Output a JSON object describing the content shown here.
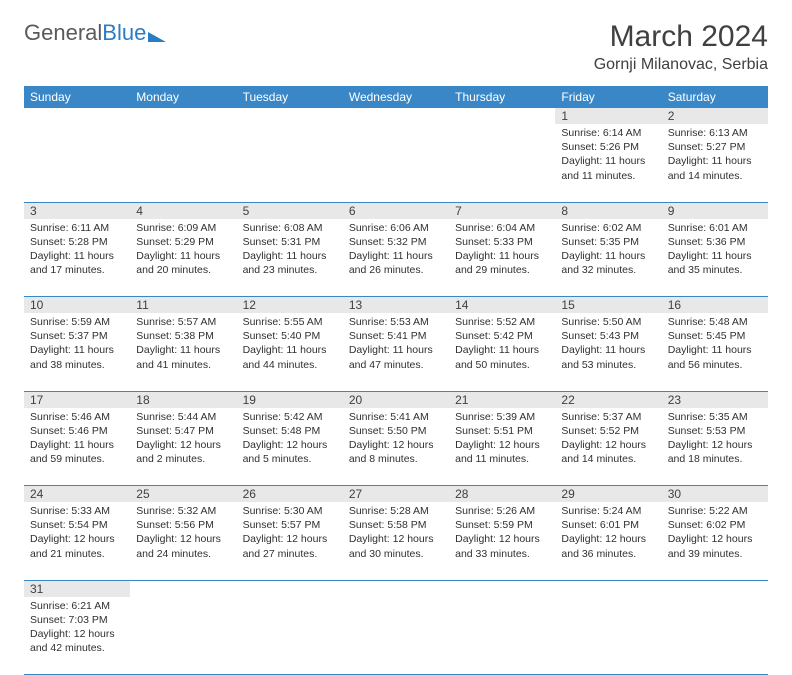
{
  "logo": {
    "part1": "General",
    "part2": "Blue"
  },
  "title": "March 2024",
  "location": "Gornji Milanovac, Serbia",
  "weekdays": [
    "Sunday",
    "Monday",
    "Tuesday",
    "Wednesday",
    "Thursday",
    "Friday",
    "Saturday"
  ],
  "colors": {
    "header_bg": "#3a87c8",
    "header_text": "#ffffff",
    "daynum_bg": "#e8e8e8",
    "row_border": "#3a87c8",
    "text": "#303030",
    "title_text": "#404040",
    "logo_gray": "#5a5a5a",
    "logo_blue": "#2a7cc4"
  },
  "weeks": [
    [
      {
        "n": "",
        "sr": "",
        "ss": "",
        "dl": ""
      },
      {
        "n": "",
        "sr": "",
        "ss": "",
        "dl": ""
      },
      {
        "n": "",
        "sr": "",
        "ss": "",
        "dl": ""
      },
      {
        "n": "",
        "sr": "",
        "ss": "",
        "dl": ""
      },
      {
        "n": "",
        "sr": "",
        "ss": "",
        "dl": ""
      },
      {
        "n": "1",
        "sr": "Sunrise: 6:14 AM",
        "ss": "Sunset: 5:26 PM",
        "dl": "Daylight: 11 hours and 11 minutes."
      },
      {
        "n": "2",
        "sr": "Sunrise: 6:13 AM",
        "ss": "Sunset: 5:27 PM",
        "dl": "Daylight: 11 hours and 14 minutes."
      }
    ],
    [
      {
        "n": "3",
        "sr": "Sunrise: 6:11 AM",
        "ss": "Sunset: 5:28 PM",
        "dl": "Daylight: 11 hours and 17 minutes."
      },
      {
        "n": "4",
        "sr": "Sunrise: 6:09 AM",
        "ss": "Sunset: 5:29 PM",
        "dl": "Daylight: 11 hours and 20 minutes."
      },
      {
        "n": "5",
        "sr": "Sunrise: 6:08 AM",
        "ss": "Sunset: 5:31 PM",
        "dl": "Daylight: 11 hours and 23 minutes."
      },
      {
        "n": "6",
        "sr": "Sunrise: 6:06 AM",
        "ss": "Sunset: 5:32 PM",
        "dl": "Daylight: 11 hours and 26 minutes."
      },
      {
        "n": "7",
        "sr": "Sunrise: 6:04 AM",
        "ss": "Sunset: 5:33 PM",
        "dl": "Daylight: 11 hours and 29 minutes."
      },
      {
        "n": "8",
        "sr": "Sunrise: 6:02 AM",
        "ss": "Sunset: 5:35 PM",
        "dl": "Daylight: 11 hours and 32 minutes."
      },
      {
        "n": "9",
        "sr": "Sunrise: 6:01 AM",
        "ss": "Sunset: 5:36 PM",
        "dl": "Daylight: 11 hours and 35 minutes."
      }
    ],
    [
      {
        "n": "10",
        "sr": "Sunrise: 5:59 AM",
        "ss": "Sunset: 5:37 PM",
        "dl": "Daylight: 11 hours and 38 minutes."
      },
      {
        "n": "11",
        "sr": "Sunrise: 5:57 AM",
        "ss": "Sunset: 5:38 PM",
        "dl": "Daylight: 11 hours and 41 minutes."
      },
      {
        "n": "12",
        "sr": "Sunrise: 5:55 AM",
        "ss": "Sunset: 5:40 PM",
        "dl": "Daylight: 11 hours and 44 minutes."
      },
      {
        "n": "13",
        "sr": "Sunrise: 5:53 AM",
        "ss": "Sunset: 5:41 PM",
        "dl": "Daylight: 11 hours and 47 minutes."
      },
      {
        "n": "14",
        "sr": "Sunrise: 5:52 AM",
        "ss": "Sunset: 5:42 PM",
        "dl": "Daylight: 11 hours and 50 minutes."
      },
      {
        "n": "15",
        "sr": "Sunrise: 5:50 AM",
        "ss": "Sunset: 5:43 PM",
        "dl": "Daylight: 11 hours and 53 minutes."
      },
      {
        "n": "16",
        "sr": "Sunrise: 5:48 AM",
        "ss": "Sunset: 5:45 PM",
        "dl": "Daylight: 11 hours and 56 minutes."
      }
    ],
    [
      {
        "n": "17",
        "sr": "Sunrise: 5:46 AM",
        "ss": "Sunset: 5:46 PM",
        "dl": "Daylight: 11 hours and 59 minutes."
      },
      {
        "n": "18",
        "sr": "Sunrise: 5:44 AM",
        "ss": "Sunset: 5:47 PM",
        "dl": "Daylight: 12 hours and 2 minutes."
      },
      {
        "n": "19",
        "sr": "Sunrise: 5:42 AM",
        "ss": "Sunset: 5:48 PM",
        "dl": "Daylight: 12 hours and 5 minutes."
      },
      {
        "n": "20",
        "sr": "Sunrise: 5:41 AM",
        "ss": "Sunset: 5:50 PM",
        "dl": "Daylight: 12 hours and 8 minutes."
      },
      {
        "n": "21",
        "sr": "Sunrise: 5:39 AM",
        "ss": "Sunset: 5:51 PM",
        "dl": "Daylight: 12 hours and 11 minutes."
      },
      {
        "n": "22",
        "sr": "Sunrise: 5:37 AM",
        "ss": "Sunset: 5:52 PM",
        "dl": "Daylight: 12 hours and 14 minutes."
      },
      {
        "n": "23",
        "sr": "Sunrise: 5:35 AM",
        "ss": "Sunset: 5:53 PM",
        "dl": "Daylight: 12 hours and 18 minutes."
      }
    ],
    [
      {
        "n": "24",
        "sr": "Sunrise: 5:33 AM",
        "ss": "Sunset: 5:54 PM",
        "dl": "Daylight: 12 hours and 21 minutes."
      },
      {
        "n": "25",
        "sr": "Sunrise: 5:32 AM",
        "ss": "Sunset: 5:56 PM",
        "dl": "Daylight: 12 hours and 24 minutes."
      },
      {
        "n": "26",
        "sr": "Sunrise: 5:30 AM",
        "ss": "Sunset: 5:57 PM",
        "dl": "Daylight: 12 hours and 27 minutes."
      },
      {
        "n": "27",
        "sr": "Sunrise: 5:28 AM",
        "ss": "Sunset: 5:58 PM",
        "dl": "Daylight: 12 hours and 30 minutes."
      },
      {
        "n": "28",
        "sr": "Sunrise: 5:26 AM",
        "ss": "Sunset: 5:59 PM",
        "dl": "Daylight: 12 hours and 33 minutes."
      },
      {
        "n": "29",
        "sr": "Sunrise: 5:24 AM",
        "ss": "Sunset: 6:01 PM",
        "dl": "Daylight: 12 hours and 36 minutes."
      },
      {
        "n": "30",
        "sr": "Sunrise: 5:22 AM",
        "ss": "Sunset: 6:02 PM",
        "dl": "Daylight: 12 hours and 39 minutes."
      }
    ],
    [
      {
        "n": "31",
        "sr": "Sunrise: 6:21 AM",
        "ss": "Sunset: 7:03 PM",
        "dl": "Daylight: 12 hours and 42 minutes."
      },
      {
        "n": "",
        "sr": "",
        "ss": "",
        "dl": ""
      },
      {
        "n": "",
        "sr": "",
        "ss": "",
        "dl": ""
      },
      {
        "n": "",
        "sr": "",
        "ss": "",
        "dl": ""
      },
      {
        "n": "",
        "sr": "",
        "ss": "",
        "dl": ""
      },
      {
        "n": "",
        "sr": "",
        "ss": "",
        "dl": ""
      },
      {
        "n": "",
        "sr": "",
        "ss": "",
        "dl": ""
      }
    ]
  ]
}
